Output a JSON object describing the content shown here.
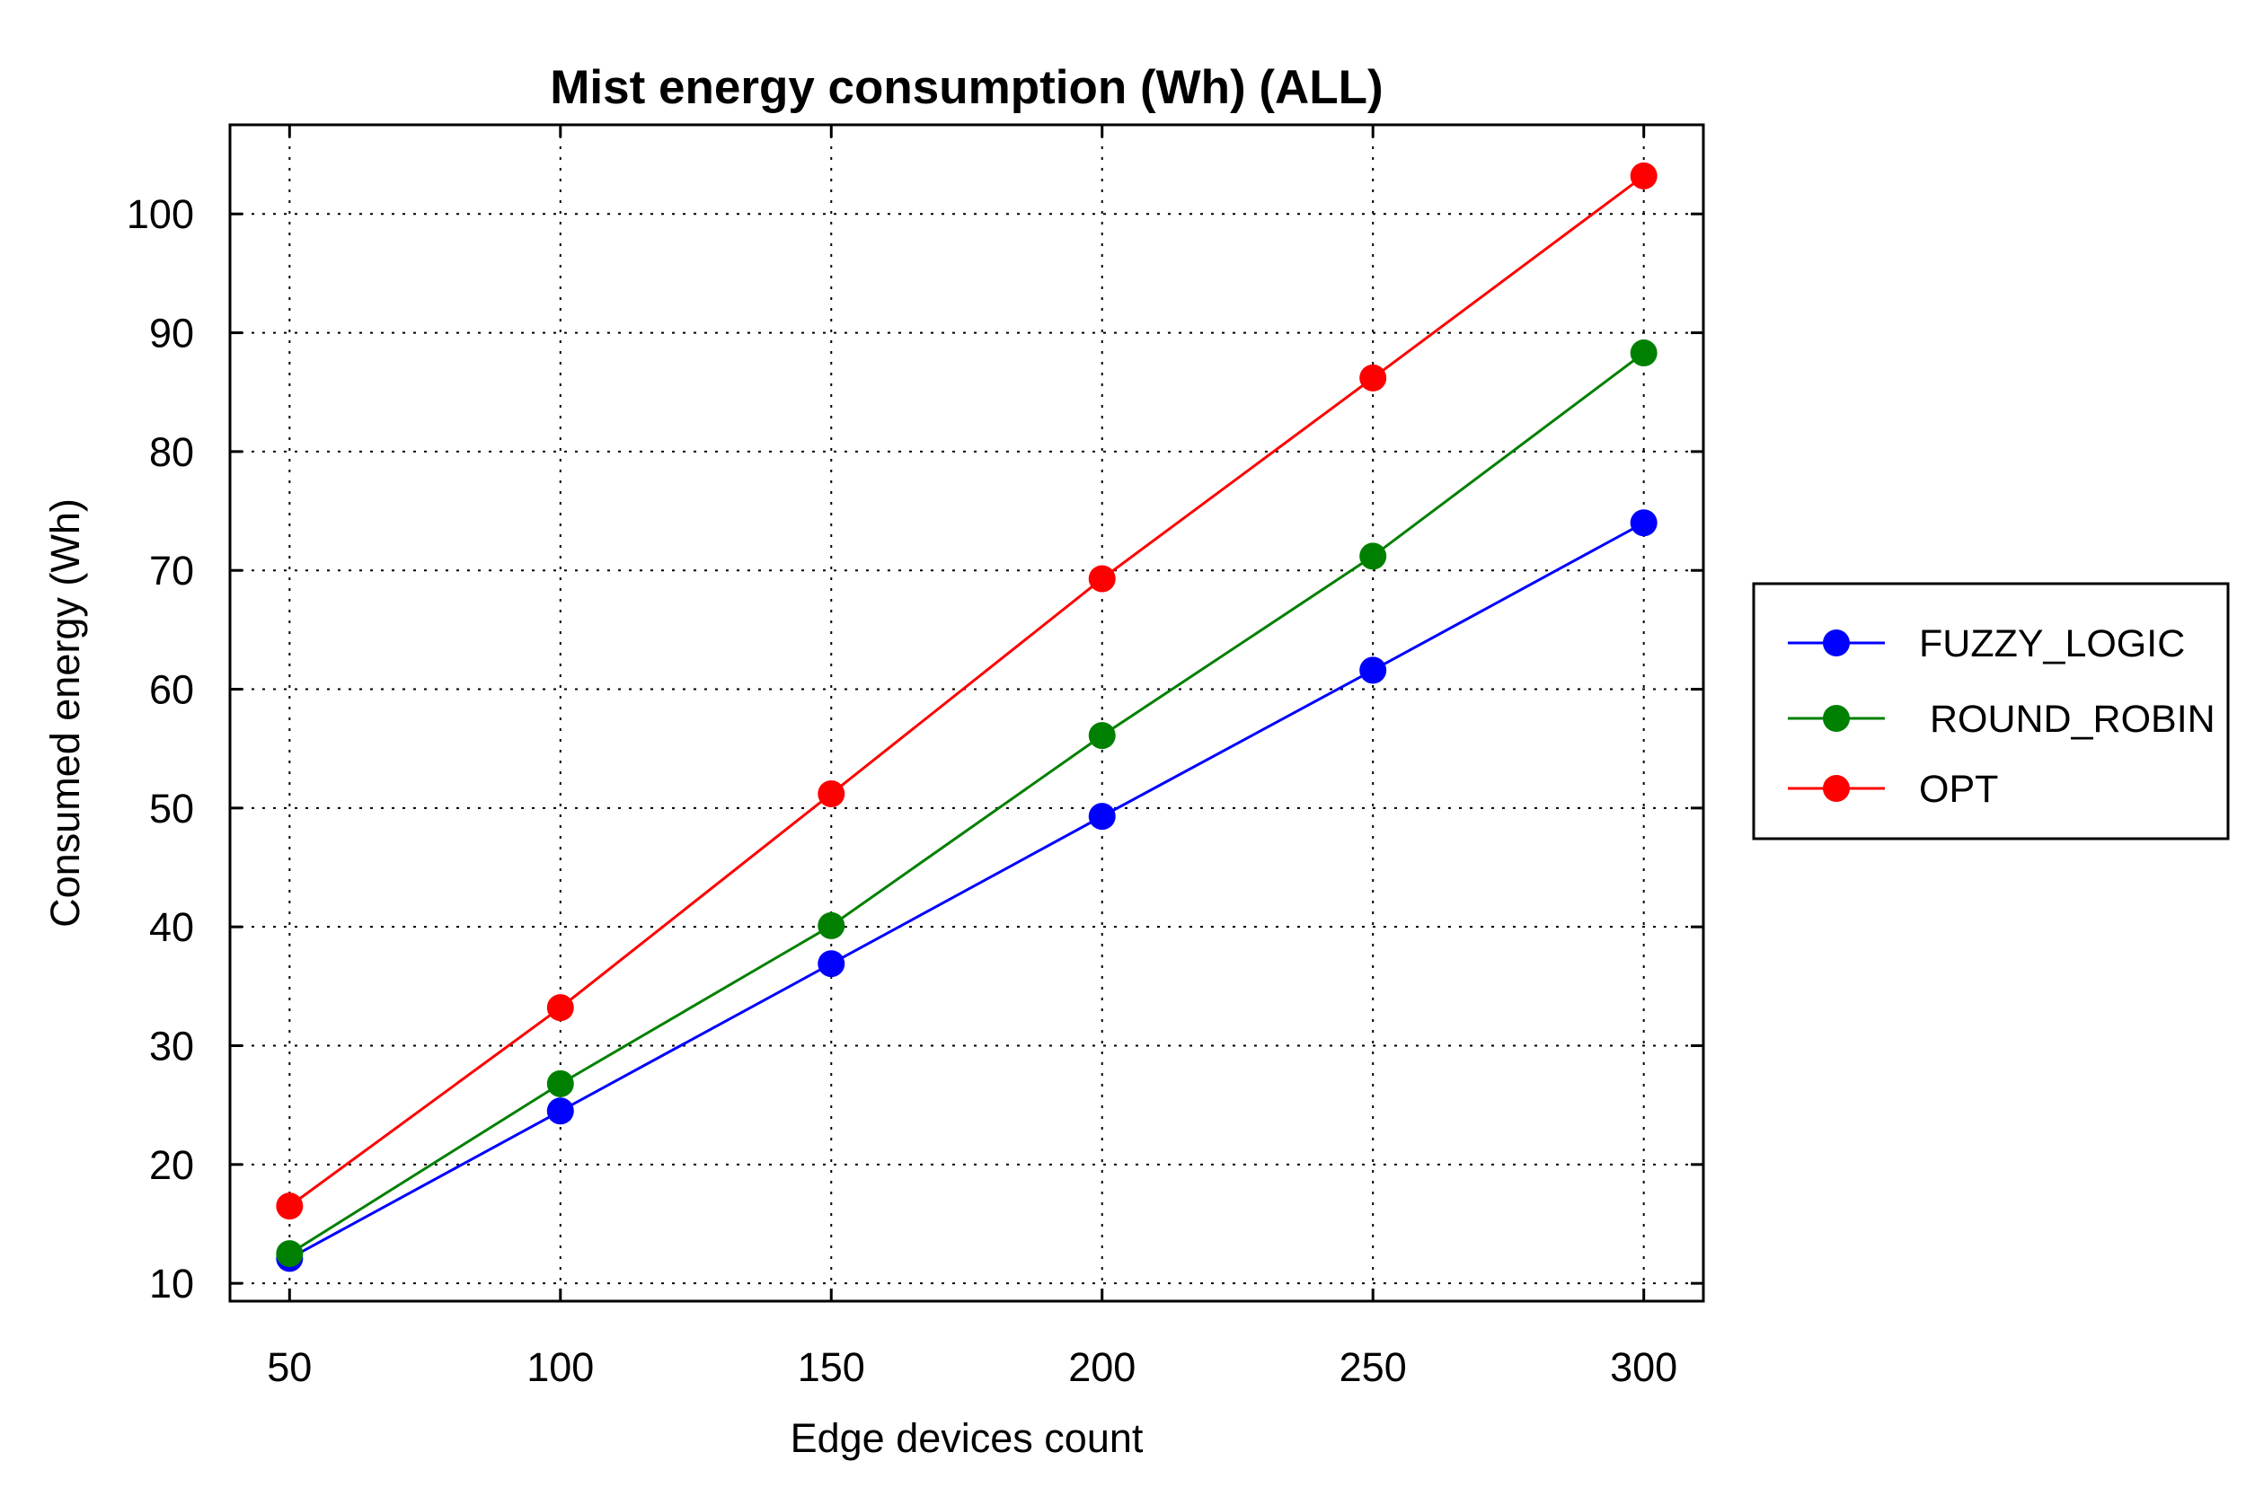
{
  "chart_data": {
    "type": "line",
    "title": "Mist energy consumption (Wh) (ALL)",
    "xlabel": "Edge devices count",
    "ylabel": "Consumed energy (Wh)",
    "x": [
      50,
      100,
      150,
      200,
      250,
      300
    ],
    "xlim": [
      39,
      311
    ],
    "ylim": [
      8.5,
      107.5
    ],
    "xticks": [
      50,
      100,
      150,
      200,
      250,
      300
    ],
    "yticks": [
      10,
      20,
      30,
      40,
      50,
      60,
      70,
      80,
      90,
      100
    ],
    "grid": true,
    "legend_position": "right",
    "series": [
      {
        "name": "FUZZY_LOGIC",
        "color": "#0000ff",
        "values": [
          12.1,
          24.5,
          36.9,
          49.3,
          61.6,
          74.0
        ]
      },
      {
        "name": " ROUND_ROBIN",
        "color": "#008000",
        "values": [
          12.5,
          26.8,
          40.1,
          56.1,
          71.2,
          88.3
        ]
      },
      {
        "name": "OPT",
        "color": "#ff0000",
        "values": [
          16.5,
          33.2,
          51.2,
          69.3,
          86.2,
          103.2
        ]
      }
    ]
  }
}
